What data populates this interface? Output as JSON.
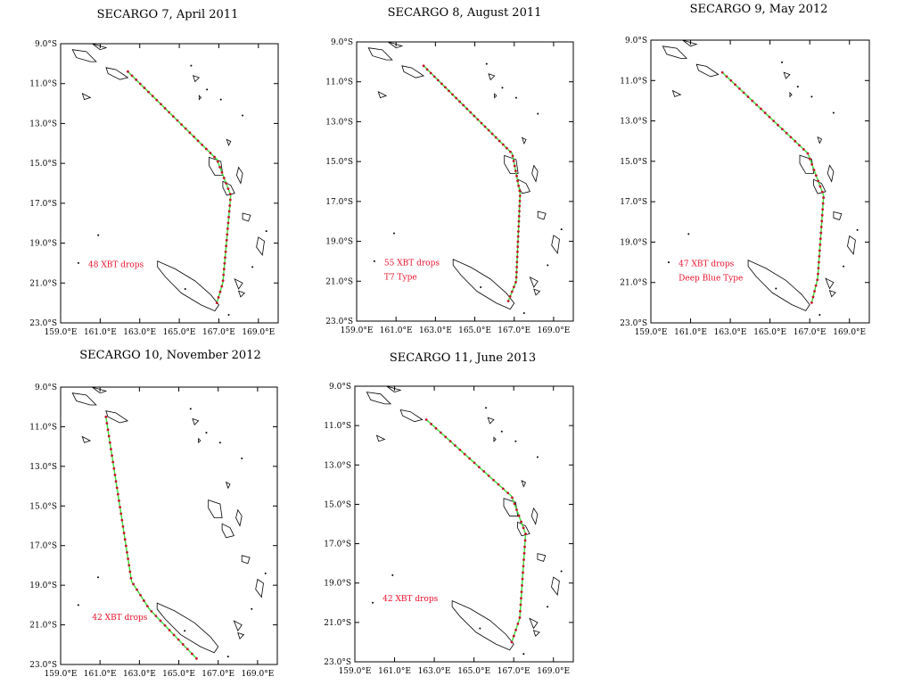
{
  "figure": {
    "background": "#ffffff",
    "track_color": "#35e035",
    "drop_color": "#c8102e",
    "annotation_color": "#e8102a"
  },
  "chart_data": [
    {
      "type": "map",
      "title": "SECARGO 7, April 2011",
      "x_ticks": [
        "159.0°E",
        "161.0°E",
        "163.0°E",
        "165.0°E",
        "167.0°E",
        "169.0°E"
      ],
      "y_ticks": [
        "9.0°S",
        "11.0°S",
        "13.0°S",
        "15.0°S",
        "17.0°S",
        "19.0°S",
        "21.0°S",
        "23.0°S"
      ],
      "lon_range": [
        159,
        170
      ],
      "lat_range": [
        -23,
        -9
      ],
      "annotations": [
        "48 XBT drops"
      ],
      "xbt_drops": 48,
      "route": [
        [
          162.4,
          -10.4
        ],
        [
          166.9,
          -14.8
        ],
        [
          167.6,
          -16.6
        ],
        [
          167.2,
          -21.0
        ],
        [
          166.9,
          -22.0
        ]
      ]
    },
    {
      "type": "map",
      "title": "SECARGO 8, August 2011",
      "x_ticks": [
        "159.0°E",
        "161.0°E",
        "163.0°E",
        "165.0°E",
        "167.0°E",
        "169.0°E"
      ],
      "y_ticks": [
        "9.0°S",
        "11.0°S",
        "13.0°S",
        "15.0°S",
        "17.0°S",
        "19.0°S",
        "21.0°S",
        "23.0°S"
      ],
      "lon_range": [
        159,
        170
      ],
      "lat_range": [
        -23,
        -9
      ],
      "annotations": [
        "55 XBT drops",
        "T7 Type"
      ],
      "xbt_drops": 55,
      "route": [
        [
          162.4,
          -10.2
        ],
        [
          166.9,
          -14.6
        ],
        [
          167.3,
          -16.6
        ],
        [
          167.1,
          -21.0
        ],
        [
          166.7,
          -22.0
        ]
      ]
    },
    {
      "type": "map",
      "title": "SECARGO 9, May 2012",
      "x_ticks": [
        "159.0°E",
        "161.0°E",
        "163.0°E",
        "165.0°E",
        "167.0°E",
        "169.0°E"
      ],
      "y_ticks": [
        "9.0°S",
        "11.0°S",
        "13.0°S",
        "15.0°S",
        "17.0°S",
        "19.0°S",
        "21.0°S",
        "23.0°S"
      ],
      "lon_range": [
        159,
        170
      ],
      "lat_range": [
        -23,
        -9
      ],
      "annotations": [
        "47 XBT drops",
        "Deep Blue Type"
      ],
      "xbt_drops": 47,
      "route": [
        [
          162.6,
          -10.6
        ],
        [
          166.9,
          -14.6
        ],
        [
          167.7,
          -16.7
        ],
        [
          167.4,
          -20.8
        ],
        [
          167.1,
          -22.0
        ]
      ]
    },
    {
      "type": "map",
      "title": "SECARGO 10, November 2012",
      "x_ticks": [
        "159.0°E",
        "161.0°E",
        "163.0°E",
        "165.0°E",
        "167.0°E",
        "169.0°E"
      ],
      "y_ticks": [
        "9.0°S",
        "11.0°S",
        "13.0°S",
        "15.0°S",
        "17.0°S",
        "19.0°S",
        "21.0°S",
        "23.0°S"
      ],
      "lon_range": [
        159,
        170
      ],
      "lat_range": [
        -23,
        -9
      ],
      "annotations": [
        "42 XBT drops"
      ],
      "xbt_drops": 42,
      "route": [
        [
          161.3,
          -10.5
        ],
        [
          162.6,
          -18.8
        ],
        [
          163.5,
          -20.2
        ],
        [
          165.9,
          -22.7
        ]
      ]
    },
    {
      "type": "map",
      "title": "SECARGO 11, June 2013",
      "x_ticks": [
        "159.0°E",
        "161.0°E",
        "163.0°E",
        "165.0°E",
        "167.0°E",
        "169.0°E"
      ],
      "y_ticks": [
        "9.0°S",
        "11.0°S",
        "13.0°S",
        "15.0°S",
        "17.0°S",
        "19.0°S",
        "21.0°S",
        "23.0°S"
      ],
      "lon_range": [
        159,
        170
      ],
      "lat_range": [
        -23,
        -9
      ],
      "annotations": [
        "42 XBT drops"
      ],
      "xbt_drops": 42,
      "route": [
        [
          162.6,
          -10.7
        ],
        [
          166.9,
          -14.6
        ],
        [
          167.6,
          -16.5
        ],
        [
          167.3,
          -20.8
        ],
        [
          166.9,
          -22.0
        ]
      ]
    }
  ]
}
